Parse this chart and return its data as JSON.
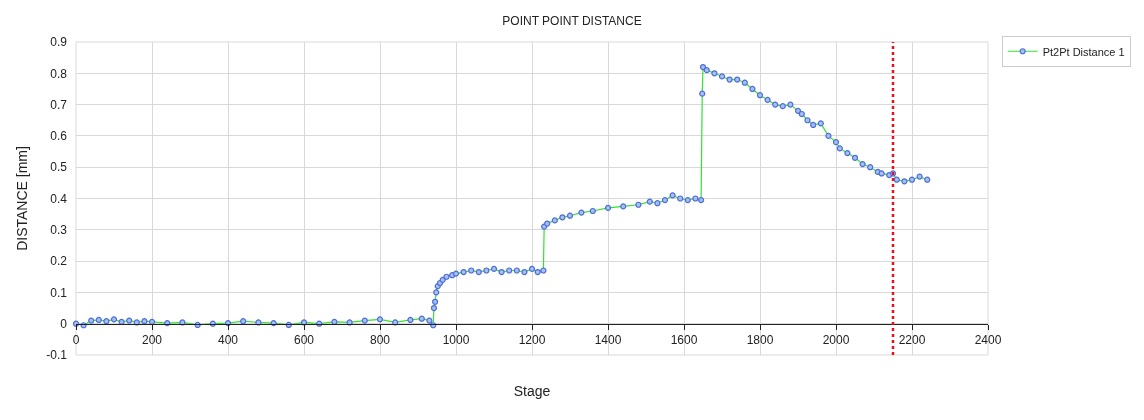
{
  "chart_data": {
    "type": "line",
    "title": "POINT POINT DISTANCE",
    "xlabel": "Stage",
    "ylabel": "DISTANCE [mm]",
    "xlim": [
      0,
      2400
    ],
    "xticks": [
      0,
      200,
      400,
      600,
      800,
      1000,
      1200,
      1400,
      1600,
      1800,
      2000,
      2200,
      2400
    ],
    "ylim": [
      -0.1,
      0.9
    ],
    "yticks": [
      -0.1,
      0,
      0.1,
      0.2,
      0.3,
      0.4,
      0.5,
      0.6,
      0.7,
      0.8,
      0.9
    ],
    "grid": true,
    "legend": "top right",
    "marker": "circle",
    "line_style": "solid",
    "ref_lines": [
      {
        "axis": "x",
        "value": 2150,
        "color": "#e8101a",
        "line_style": "dotted"
      }
    ],
    "series": [
      {
        "name": "Pt2Pt Distance 1",
        "color": "#4a6fd8",
        "x": [
          0,
          20,
          40,
          60,
          80,
          100,
          120,
          140,
          160,
          180,
          200,
          240,
          280,
          320,
          360,
          400,
          440,
          480,
          520,
          560,
          600,
          640,
          680,
          720,
          760,
          800,
          840,
          880,
          910,
          930,
          940,
          942,
          945,
          948,
          952,
          958,
          965,
          975,
          990,
          1000,
          1020,
          1040,
          1060,
          1080,
          1100,
          1120,
          1140,
          1160,
          1180,
          1200,
          1215,
          1230,
          1232,
          1240,
          1260,
          1280,
          1300,
          1330,
          1360,
          1400,
          1440,
          1480,
          1510,
          1530,
          1550,
          1570,
          1590,
          1610,
          1630,
          1645,
          1648,
          1650,
          1660,
          1680,
          1700,
          1720,
          1740,
          1760,
          1780,
          1800,
          1820,
          1840,
          1860,
          1880,
          1900,
          1910,
          1925,
          1940,
          1960,
          1980,
          2000,
          2010,
          2030,
          2050,
          2070,
          2090,
          2110,
          2120,
          2140,
          2150,
          2160,
          2180,
          2200,
          2220,
          2240
        ],
        "values": [
          0,
          -0.005,
          0.01,
          0.012,
          0.008,
          0.014,
          0.006,
          0.01,
          0.004,
          0.008,
          0.006,
          0.002,
          0.004,
          -0.004,
          0,
          0.002,
          0.008,
          0.004,
          0.002,
          -0.004,
          0.004,
          0,
          0.006,
          0.004,
          0.01,
          0.014,
          0.004,
          0.012,
          0.016,
          0.01,
          -0.005,
          0.05,
          0.07,
          0.1,
          0.12,
          0.13,
          0.14,
          0.15,
          0.155,
          0.16,
          0.165,
          0.17,
          0.165,
          0.17,
          0.175,
          0.165,
          0.17,
          0.17,
          0.165,
          0.175,
          0.165,
          0.17,
          0.31,
          0.32,
          0.33,
          0.34,
          0.345,
          0.355,
          0.36,
          0.37,
          0.375,
          0.38,
          0.39,
          0.385,
          0.395,
          0.41,
          0.4,
          0.395,
          0.4,
          0.395,
          0.735,
          0.82,
          0.81,
          0.8,
          0.79,
          0.78,
          0.78,
          0.77,
          0.75,
          0.73,
          0.715,
          0.7,
          0.695,
          0.7,
          0.68,
          0.67,
          0.65,
          0.635,
          0.64,
          0.6,
          0.58,
          0.56,
          0.545,
          0.53,
          0.51,
          0.5,
          0.485,
          0.48,
          0.475,
          0.48,
          0.46,
          0.455,
          0.46,
          0.47,
          0.46
        ]
      }
    ]
  }
}
